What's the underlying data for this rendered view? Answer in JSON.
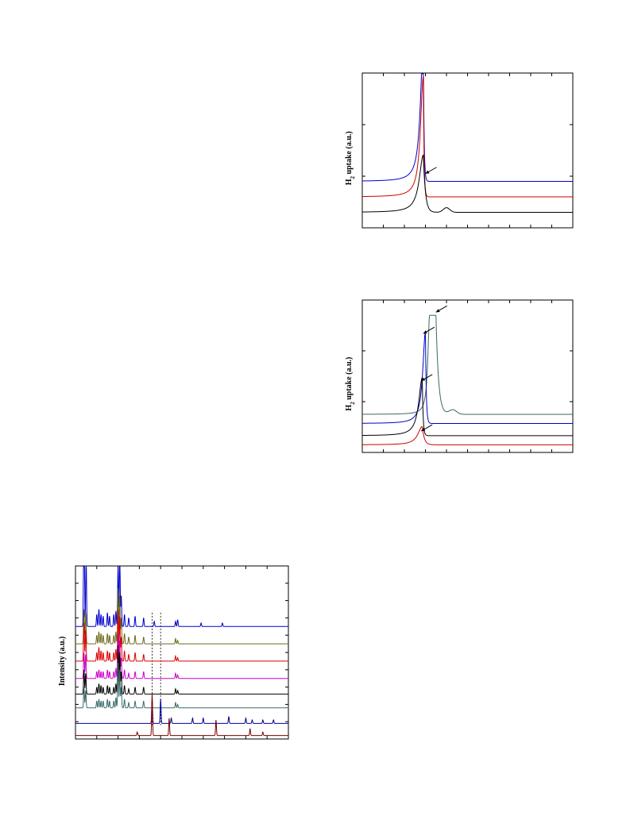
{
  "chart_data": [
    {
      "type": "line",
      "title": "",
      "xlabel": "",
      "ylabel": "H2 uptake (a.u.)",
      "ylabel_main": "H",
      "ylabel_sub": "2",
      "ylabel_rest": " uptake (a.u.)",
      "xlim": [
        0,
        100
      ],
      "ylim": [
        0,
        100
      ],
      "grid": false,
      "series": [
        {
          "color": "#0000cc",
          "peak_x": 29,
          "baseline": 30,
          "peak_height": 90,
          "left_width": 1.6,
          "right_width": 0.35,
          "bumps": []
        },
        {
          "color": "#cc0000",
          "peak_x": 29,
          "baseline": 20,
          "peak_height": 78,
          "left_width": 1.6,
          "right_width": 0.35,
          "bumps": []
        },
        {
          "color": "#000000",
          "peak_x": 29,
          "baseline": 10,
          "peak_height": 37,
          "left_width": 2.3,
          "right_width": 1.0,
          "bumps": [
            {
              "x": 40,
              "h": 3,
              "w": 2.2
            }
          ]
        }
      ],
      "annotations": [
        {
          "type": "arrow",
          "x": 30,
          "y": 35
        }
      ]
    },
    {
      "type": "line",
      "title": "",
      "xlabel": "",
      "ylabel": "H2 uptake (a.u.)",
      "ylabel_main": "H",
      "ylabel_sub": "2",
      "ylabel_rest": " uptake (a.u.)",
      "xlim": [
        0,
        100
      ],
      "ylim": [
        0,
        100
      ],
      "grid": false,
      "series": [
        {
          "color": "#3a6b5a",
          "peak_x": 32,
          "baseline": 25,
          "peak_height": 65,
          "left_width": 1.0,
          "right_width": 1.2,
          "flat_top": 3,
          "bumps": [
            {
              "x": 43,
              "h": 3,
              "w": 2.5
            }
          ]
        },
        {
          "color": "#0000cc",
          "peak_x": 30,
          "baseline": 19,
          "peak_height": 60,
          "left_width": 1.5,
          "right_width": 0.4,
          "bumps": []
        },
        {
          "color": "#000000",
          "peak_x": 28.5,
          "baseline": 11,
          "peak_height": 38,
          "left_width": 2.0,
          "right_width": 0.4,
          "bumps": []
        },
        {
          "color": "#cc0000",
          "peak_x": 28.5,
          "baseline": 5,
          "peak_height": 12,
          "left_width": 2.5,
          "right_width": 1.0,
          "bumps": []
        }
      ],
      "annotations": [
        {
          "type": "arrow",
          "x": 35,
          "y": 92
        },
        {
          "type": "arrow",
          "x": 29,
          "y": 78
        },
        {
          "type": "arrow",
          "x": 28,
          "y": 47
        },
        {
          "type": "arrow",
          "x": 28,
          "y": 14
        }
      ]
    },
    {
      "type": "line",
      "title": "",
      "xlabel": "",
      "ylabel": "Intensity (a.u.)",
      "xlim": [
        0,
        100
      ],
      "ylim": [
        0,
        100
      ],
      "grid": false,
      "dashed_lines_x": [
        36,
        40
      ],
      "series": [
        {
          "color": "#0000cc",
          "baseline": 65,
          "peaks": [
            [
              4,
              98
            ],
            [
              5,
              40
            ],
            [
              10,
              7
            ],
            [
              11,
              10
            ],
            [
              12,
              7
            ],
            [
              13,
              6
            ],
            [
              15,
              8
            ],
            [
              16,
              6
            ],
            [
              18,
              7
            ],
            [
              19,
              9
            ],
            [
              20,
              35
            ],
            [
              20.8,
              45
            ],
            [
              21.5,
              18
            ],
            [
              23,
              7
            ],
            [
              25,
              5
            ],
            [
              28,
              6
            ],
            [
              32,
              5
            ],
            [
              37,
              3
            ],
            [
              47,
              3
            ],
            [
              48,
              4
            ],
            [
              59,
              2
            ],
            [
              69,
              2
            ]
          ]
        },
        {
          "color": "#6b6b1a",
          "baseline": 55,
          "peaks": [
            [
              4,
              20
            ],
            [
              4.8,
              18
            ],
            [
              10,
              5
            ],
            [
              11,
              7
            ],
            [
              12,
              6
            ],
            [
              13,
              5
            ],
            [
              15,
              6
            ],
            [
              16,
              5
            ],
            [
              18,
              5
            ],
            [
              19,
              7
            ],
            [
              20,
              32
            ],
            [
              20.8,
              28
            ],
            [
              21.5,
              15
            ],
            [
              23,
              6
            ],
            [
              25,
              4
            ],
            [
              28,
              5
            ],
            [
              32,
              4
            ],
            [
              47,
              3
            ],
            [
              48,
              2
            ]
          ]
        },
        {
          "color": "#dd0000",
          "baseline": 45,
          "peaks": [
            [
              4,
              22
            ],
            [
              4.8,
              18
            ],
            [
              10,
              5
            ],
            [
              11,
              8
            ],
            [
              12,
              6
            ],
            [
              13,
              5
            ],
            [
              15,
              6
            ],
            [
              16,
              5
            ],
            [
              18,
              5
            ],
            [
              19,
              7
            ],
            [
              20,
              30
            ],
            [
              20.8,
              26
            ],
            [
              21.5,
              14
            ],
            [
              23,
              6
            ],
            [
              25,
              4
            ],
            [
              28,
              5
            ],
            [
              32,
              4
            ],
            [
              47,
              3
            ],
            [
              48,
              2
            ]
          ]
        },
        {
          "color": "#cc00cc",
          "baseline": 35,
          "peaks": [
            [
              4,
              15
            ],
            [
              4.8,
              14
            ],
            [
              10,
              4
            ],
            [
              11,
              5
            ],
            [
              12,
              4
            ],
            [
              13,
              4
            ],
            [
              15,
              5
            ],
            [
              16,
              4
            ],
            [
              18,
              4
            ],
            [
              19,
              6
            ],
            [
              20,
              26
            ],
            [
              20.8,
              22
            ],
            [
              21.5,
              12
            ],
            [
              23,
              5
            ],
            [
              25,
              3
            ],
            [
              28,
              4
            ],
            [
              32,
              4
            ],
            [
              47,
              3
            ],
            [
              48,
              2
            ]
          ]
        },
        {
          "color": "#000000",
          "baseline": 26,
          "peaks": [
            [
              4,
              14
            ],
            [
              4.8,
              12
            ],
            [
              10,
              4
            ],
            [
              11,
              6
            ],
            [
              12,
              5
            ],
            [
              13,
              4
            ],
            [
              15,
              5
            ],
            [
              16,
              4
            ],
            [
              18,
              4
            ],
            [
              19,
              6
            ],
            [
              20,
              28
            ],
            [
              20.8,
              24
            ],
            [
              21.5,
              13
            ],
            [
              23,
              5
            ],
            [
              25,
              3
            ],
            [
              28,
              4
            ],
            [
              32,
              4
            ],
            [
              47,
              3
            ],
            [
              48,
              2
            ]
          ]
        },
        {
          "color": "#3a6b6b",
          "baseline": 18,
          "peaks": [
            [
              4,
              12
            ],
            [
              4.8,
              10
            ],
            [
              10,
              4
            ],
            [
              11,
              5
            ],
            [
              12,
              4
            ],
            [
              13,
              4
            ],
            [
              15,
              5
            ],
            [
              16,
              4
            ],
            [
              18,
              4
            ],
            [
              19,
              6
            ],
            [
              20,
              26
            ],
            [
              20.8,
              22
            ],
            [
              21.5,
              12
            ],
            [
              23,
              5
            ],
            [
              25,
              3
            ],
            [
              28,
              4
            ],
            [
              32,
              4
            ],
            [
              47,
              3
            ],
            [
              48,
              2
            ]
          ]
        },
        {
          "color": "#000099",
          "baseline": 9,
          "peaks": [
            [
              36,
              14
            ],
            [
              40,
              14
            ],
            [
              45,
              3
            ],
            [
              55,
              3
            ],
            [
              60,
              3
            ],
            [
              72,
              4
            ],
            [
              80,
              3
            ],
            [
              83,
              2
            ],
            [
              88,
              2
            ],
            [
              93,
              2
            ]
          ]
        },
        {
          "color": "#7a0000",
          "baseline": 2,
          "peaks": [
            [
              36,
              24
            ],
            [
              44,
              10
            ],
            [
              29,
              2
            ],
            [
              66,
              9
            ],
            [
              82,
              4
            ],
            [
              88,
              2
            ]
          ]
        }
      ]
    }
  ]
}
